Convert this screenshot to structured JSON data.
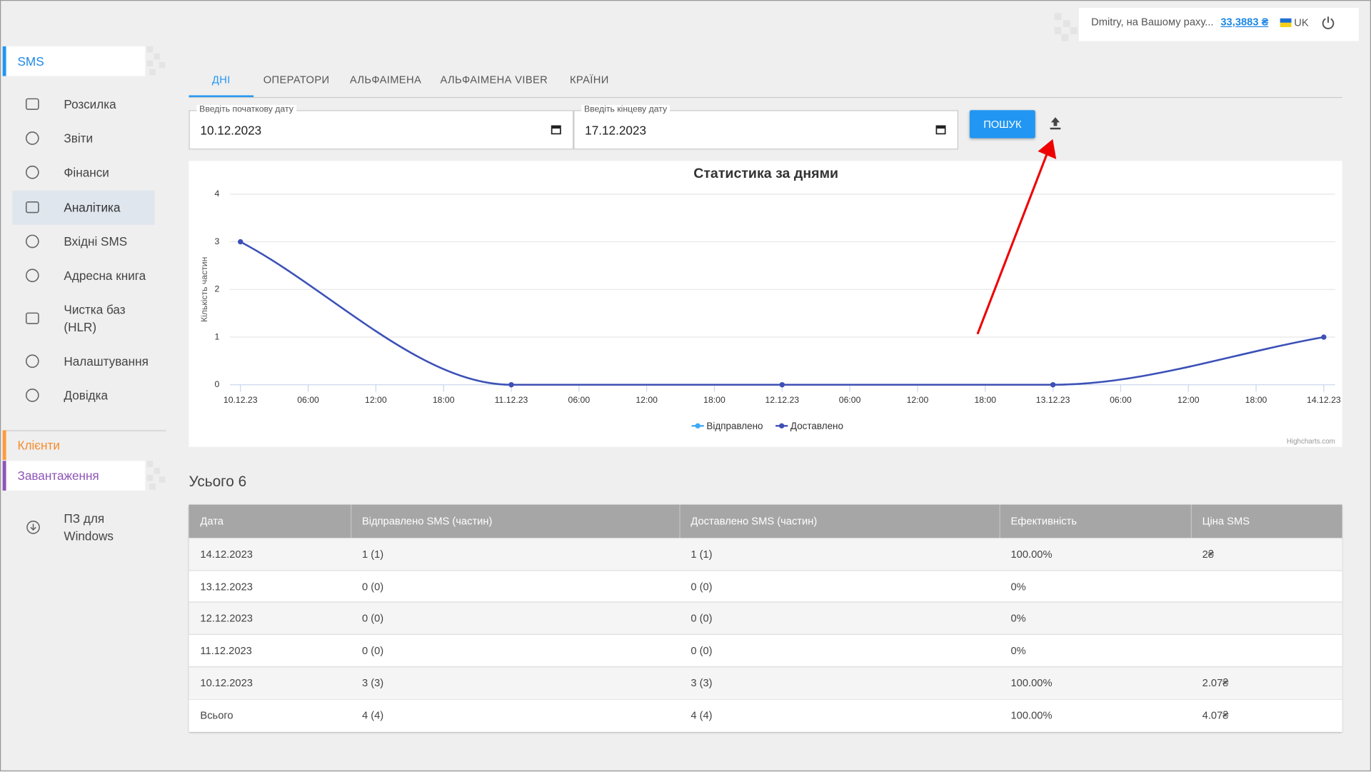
{
  "header": {
    "user": "Dmitry, на Вашому раху...",
    "balance": "33,3883 ₴",
    "lang": "UK"
  },
  "sidebar": {
    "sms_title": "SMS",
    "items": [
      "Розсилка",
      "Звіти",
      "Фінанси",
      "Аналітика",
      "Вхідні SMS",
      "Адресна книга",
      "Чистка баз (HLR)",
      "Налаштування",
      "Довідка"
    ],
    "active": "Аналітика",
    "clients": "Клієнти",
    "downloads": "Завантаження",
    "download_items": [
      "ПЗ для Windows"
    ]
  },
  "tabs": [
    "ДНІ",
    "ОПЕРАТОРИ",
    "АЛЬФАІМЕНА",
    "АЛЬФАІМЕНА VIBER",
    "КРАЇНИ"
  ],
  "filters": {
    "start_label": "Введіть початкову дату",
    "start_value": "10.12.2023",
    "end_label": "Введіть кінцеву дату",
    "end_value": "17.12.2023",
    "search": "ПОШУК"
  },
  "chart_data": {
    "type": "line",
    "title": "Статистика за днями",
    "y_label": "Кількість частин",
    "categories": [
      "10.12.23",
      "11.12.23",
      "12.12.23",
      "13.12.23",
      "14.12.23"
    ],
    "xticks": [
      "10.12.23",
      "06:00",
      "12:00",
      "18:00",
      "11.12.23",
      "06:00",
      "12:00",
      "18:00",
      "12.12.23",
      "06:00",
      "12:00",
      "18:00",
      "13.12.23",
      "06:00",
      "12:00",
      "18:00",
      "14.12.23"
    ],
    "series": [
      {
        "name": "Відправлено",
        "color": "#3fa9f5",
        "values": [
          3,
          0,
          0,
          0,
          1
        ]
      },
      {
        "name": "Доставлено",
        "color": "#3f4fb5",
        "values": [
          3,
          0,
          0,
          0,
          1
        ]
      }
    ],
    "ylim": [
      0,
      4
    ],
    "yticks": [
      0,
      1,
      2,
      3,
      4
    ],
    "grid": true,
    "credits": "Highcharts.com"
  },
  "total": "Усього 6",
  "table": {
    "columns": [
      "Дата",
      "Відправлено SMS (частин)",
      "Доставлено SMS (частин)",
      "Ефективність",
      "Ціна SMS"
    ],
    "rows": [
      [
        "14.12.2023",
        "1 (1)",
        "1 (1)",
        "100.00%",
        "2₴"
      ],
      [
        "13.12.2023",
        "0 (0)",
        "0 (0)",
        "0%",
        ""
      ],
      [
        "12.12.2023",
        "0 (0)",
        "0 (0)",
        "0%",
        ""
      ],
      [
        "11.12.2023",
        "0 (0)",
        "0 (0)",
        "0%",
        ""
      ],
      [
        "10.12.2023",
        "3 (3)",
        "3 (3)",
        "100.00%",
        "2.07₴"
      ],
      [
        "Всього",
        "4 (4)",
        "4 (4)",
        "100.00%",
        "4.07₴"
      ]
    ]
  }
}
